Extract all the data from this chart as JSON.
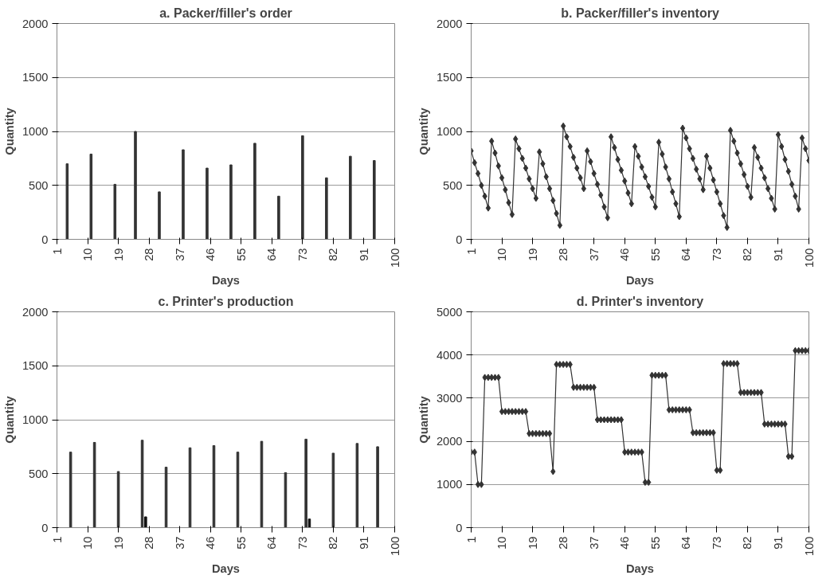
{
  "chart_data": [
    {
      "type": "bar",
      "title": "a. Packer/filler's order",
      "xlabel": "Days",
      "ylabel": "Quantity",
      "xlim": [
        1,
        100
      ],
      "xticks": [
        1,
        10,
        19,
        28,
        37,
        46,
        55,
        64,
        73,
        82,
        91,
        100
      ],
      "ylim": [
        0,
        2000
      ],
      "yticks": [
        0,
        500,
        1000,
        1500,
        2000
      ],
      "grid": "y",
      "x": [
        4,
        11,
        18,
        24,
        31,
        38,
        45,
        52,
        59,
        66,
        73,
        80,
        87,
        94
      ],
      "series": [
        {
          "color": "#333333",
          "values": [
            700,
            790,
            510,
            1000,
            440,
            830,
            660,
            690,
            890,
            400,
            960,
            570,
            770,
            730
          ]
        }
      ]
    },
    {
      "type": "line",
      "title": "b. Packer/filler's inventory",
      "xlabel": "Days",
      "ylabel": "Quantity",
      "xlim": [
        1,
        100
      ],
      "xticks": [
        1,
        10,
        19,
        28,
        37,
        46,
        55,
        64,
        73,
        82,
        91,
        100
      ],
      "ylim": [
        0,
        2000
      ],
      "yticks": [
        0,
        500,
        1000,
        1500,
        2000
      ],
      "grid": "y",
      "marker": "diamond",
      "x": [
        1,
        2,
        3,
        4,
        5,
        6,
        7,
        8,
        9,
        10,
        11,
        12,
        13,
        14,
        15,
        16,
        17,
        18,
        19,
        20,
        21,
        22,
        23,
        24,
        25,
        26,
        27,
        28,
        29,
        30,
        31,
        32,
        33,
        34,
        35,
        36,
        37,
        38,
        39,
        40,
        41,
        42,
        43,
        44,
        45,
        46,
        47,
        48,
        49,
        50,
        51,
        52,
        53,
        54,
        55,
        56,
        57,
        58,
        59,
        60,
        61,
        62,
        63,
        64,
        65,
        66,
        67,
        68,
        69,
        70,
        71,
        72,
        73,
        74,
        75,
        76,
        77,
        78,
        79,
        80,
        81,
        82,
        83,
        84,
        85,
        86,
        87,
        88,
        89,
        90,
        91,
        92,
        93,
        94,
        95,
        96,
        97,
        98,
        99,
        100
      ],
      "series": [
        {
          "color": "#333333",
          "values": [
            820,
            710,
            610,
            500,
            400,
            290,
            910,
            800,
            680,
            570,
            460,
            340,
            230,
            930,
            840,
            750,
            660,
            560,
            470,
            380,
            810,
            700,
            580,
            470,
            360,
            240,
            130,
            1050,
            950,
            860,
            760,
            660,
            570,
            470,
            820,
            720,
            610,
            510,
            410,
            300,
            200,
            950,
            850,
            740,
            640,
            540,
            430,
            330,
            860,
            770,
            670,
            580,
            490,
            390,
            300,
            900,
            790,
            670,
            560,
            440,
            330,
            210,
            1030,
            940,
            840,
            750,
            650,
            560,
            460,
            770,
            660,
            550,
            440,
            330,
            220,
            110,
            1010,
            910,
            800,
            700,
            600,
            490,
            390,
            850,
            760,
            660,
            570,
            470,
            380,
            280,
            970,
            860,
            740,
            630,
            510,
            400,
            280,
            940,
            840,
            730
          ]
        }
      ]
    },
    {
      "type": "bar",
      "title": "c. Printer's production",
      "xlabel": "Days",
      "ylabel": "Quantity",
      "xlim": [
        1,
        100
      ],
      "xticks": [
        1,
        10,
        19,
        28,
        37,
        46,
        55,
        64,
        73,
        82,
        91,
        100
      ],
      "ylim": [
        0,
        2000
      ],
      "yticks": [
        0,
        500,
        1000,
        1500,
        2000
      ],
      "grid": "y",
      "series": [
        {
          "color": "#333333",
          "x": [
            5,
            12,
            19,
            26,
            33,
            40,
            47,
            54,
            61,
            68,
            74,
            82,
            89,
            95
          ],
          "values": [
            700,
            790,
            520,
            810,
            560,
            740,
            760,
            700,
            800,
            510,
            820,
            690,
            780,
            750
          ]
        },
        {
          "color": "#111111",
          "x": [
            27,
            75
          ],
          "values": [
            100,
            80
          ]
        }
      ]
    },
    {
      "type": "line",
      "title": "d. Printer's inventory",
      "xlabel": "Days",
      "ylabel": "Quantity",
      "xlim": [
        1,
        100
      ],
      "xticks": [
        1,
        10,
        19,
        28,
        37,
        46,
        55,
        64,
        73,
        82,
        91,
        100
      ],
      "ylim": [
        0,
        5000
      ],
      "yticks": [
        0,
        1000,
        2000,
        3000,
        4000,
        5000
      ],
      "grid": "y",
      "marker": "diamond",
      "x": [
        1,
        2,
        3,
        4,
        5,
        6,
        7,
        8,
        9,
        10,
        11,
        12,
        13,
        14,
        15,
        16,
        17,
        18,
        19,
        20,
        21,
        22,
        23,
        24,
        25,
        26,
        27,
        28,
        29,
        30,
        31,
        32,
        33,
        34,
        35,
        36,
        37,
        38,
        39,
        40,
        41,
        42,
        43,
        44,
        45,
        46,
        47,
        48,
        49,
        50,
        51,
        52,
        53,
        54,
        55,
        56,
        57,
        58,
        59,
        60,
        61,
        62,
        63,
        64,
        65,
        66,
        67,
        68,
        69,
        70,
        71,
        72,
        73,
        74,
        75,
        76,
        77,
        78,
        79,
        80,
        81,
        82,
        83,
        84,
        85,
        86,
        87,
        88,
        89,
        90,
        91,
        92,
        93,
        94,
        95,
        96,
        97,
        98,
        99,
        100
      ],
      "series": [
        {
          "color": "#333333",
          "values": [
            1750,
            1750,
            1000,
            1000,
            3480,
            3480,
            3480,
            3480,
            3480,
            2690,
            2690,
            2690,
            2690,
            2690,
            2690,
            2690,
            2690,
            2180,
            2180,
            2180,
            2180,
            2180,
            2180,
            2180,
            1300,
            3780,
            3780,
            3780,
            3780,
            3780,
            3250,
            3250,
            3250,
            3250,
            3250,
            3250,
            3250,
            2500,
            2500,
            2500,
            2500,
            2500,
            2500,
            2500,
            2500,
            1750,
            1750,
            1750,
            1750,
            1750,
            1750,
            1050,
            1050,
            3530,
            3530,
            3530,
            3530,
            3530,
            2730,
            2730,
            2730,
            2730,
            2730,
            2730,
            2730,
            2200,
            2200,
            2200,
            2200,
            2200,
            2200,
            2200,
            1330,
            1330,
            3800,
            3800,
            3800,
            3800,
            3800,
            3130,
            3130,
            3130,
            3130,
            3130,
            3130,
            3130,
            2400,
            2400,
            2400,
            2400,
            2400,
            2400,
            2400,
            1650,
            1650,
            4100,
            4100,
            4100,
            4100,
            4100
          ]
        }
      ]
    }
  ]
}
